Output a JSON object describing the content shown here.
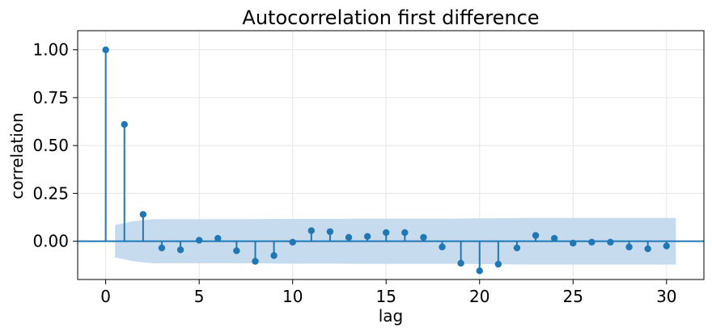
{
  "chart_data": {
    "type": "scatter",
    "title": "Autocorrelation first difference",
    "xlabel": "lag",
    "ylabel": "correlation",
    "xlim": [
      -1.5,
      32
    ],
    "ylim": [
      -0.2,
      1.1
    ],
    "xticks": [
      0,
      5,
      10,
      15,
      20,
      25,
      30
    ],
    "xtick_labels": [
      "0",
      "5",
      "10",
      "15",
      "20",
      "25",
      "30"
    ],
    "yticks": [
      0.0,
      0.25,
      0.5,
      0.75,
      1.0
    ],
    "ytick_labels": [
      "0.00",
      "0.25",
      "0.50",
      "0.75",
      "1.00"
    ],
    "grid": true,
    "legend": false,
    "series": [
      {
        "lags": [
          0,
          1,
          2,
          3,
          4,
          5,
          6,
          7,
          8,
          9,
          10,
          11,
          12,
          13,
          14,
          15,
          16,
          17,
          18,
          19,
          20,
          21,
          22,
          23,
          24,
          25,
          26,
          27,
          28,
          29,
          30
        ],
        "values": [
          1.0,
          0.61,
          0.14,
          -0.035,
          -0.045,
          0.005,
          0.015,
          -0.05,
          -0.105,
          -0.075,
          -0.005,
          0.055,
          0.05,
          0.02,
          0.025,
          0.045,
          0.045,
          0.02,
          -0.03,
          -0.115,
          -0.155,
          -0.12,
          -0.035,
          0.03,
          0.015,
          -0.01,
          -0.005,
          -0.005,
          -0.03,
          -0.04,
          -0.025
        ]
      }
    ],
    "confidence_band": {
      "lags": [
        0.5,
        1.5,
        2.5,
        3.5,
        4.5,
        5.5,
        6.5,
        7.5,
        8.5,
        9.5,
        10.5,
        11.5,
        12.5,
        13.5,
        14.5,
        15.5,
        16.5,
        17.5,
        18.5,
        19.5,
        20.5,
        21.5,
        22.5,
        23.5,
        24.5,
        25.5,
        26.5,
        27.5,
        28.5,
        29.5,
        30.5
      ],
      "upper": [
        0.085,
        0.105,
        0.115,
        0.115,
        0.115,
        0.115,
        0.115,
        0.115,
        0.116,
        0.117,
        0.117,
        0.117,
        0.117,
        0.118,
        0.118,
        0.118,
        0.118,
        0.118,
        0.118,
        0.119,
        0.12,
        0.121,
        0.122,
        0.122,
        0.122,
        0.122,
        0.122,
        0.122,
        0.122,
        0.122,
        0.122
      ],
      "lower": [
        -0.085,
        -0.105,
        -0.115,
        -0.115,
        -0.115,
        -0.115,
        -0.115,
        -0.115,
        -0.116,
        -0.117,
        -0.117,
        -0.117,
        -0.117,
        -0.118,
        -0.118,
        -0.118,
        -0.118,
        -0.118,
        -0.118,
        -0.119,
        -0.12,
        -0.121,
        -0.122,
        -0.122,
        -0.122,
        -0.122,
        -0.122,
        -0.122,
        -0.122,
        -0.122,
        -0.122
      ]
    },
    "colors": {
      "stem": "#1f77b4",
      "band": "#c6dbed",
      "baseline": "#1f77b4"
    }
  }
}
